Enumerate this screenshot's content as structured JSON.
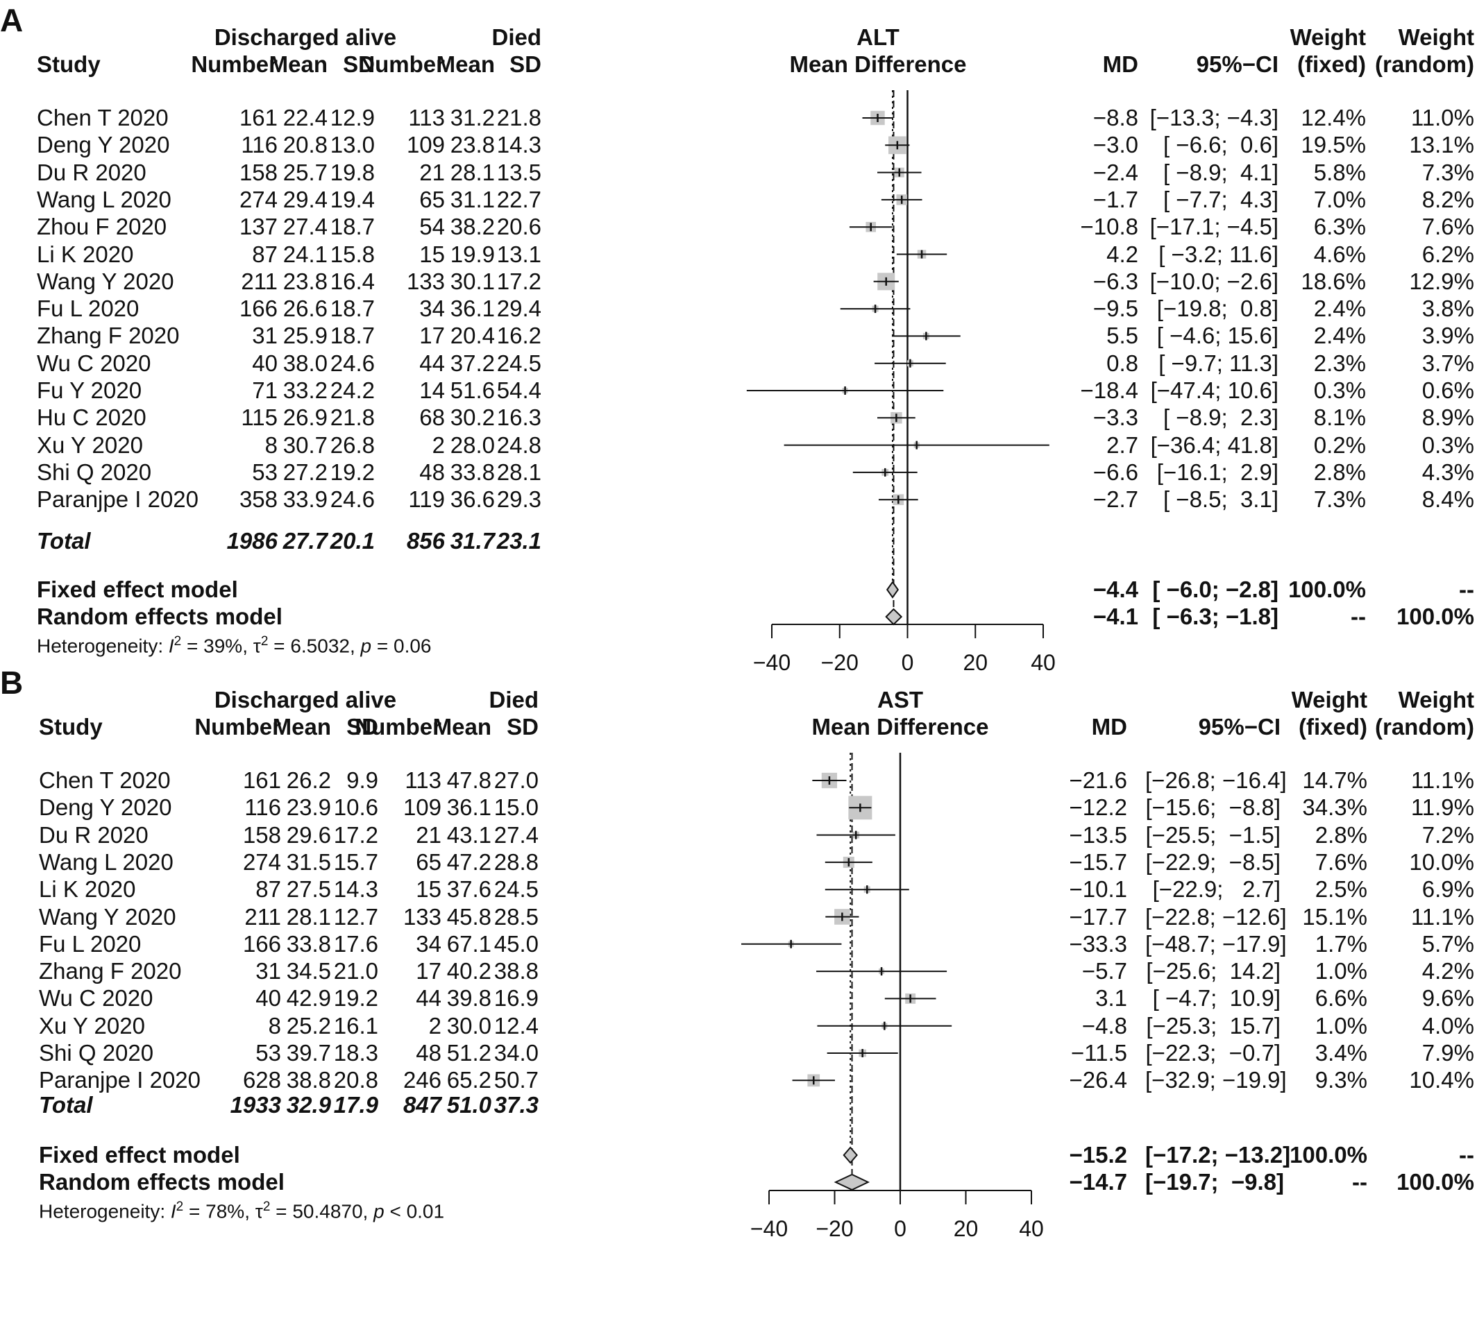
{
  "panels": [
    {
      "label": "A",
      "head": {
        "study": "Study",
        "group1": "Discharged alive",
        "group2": "Died",
        "number": "Number",
        "mean": "Mean",
        "sd": "SD",
        "outcome": "ALT",
        "measure": "Mean Difference",
        "md": "MD",
        "ci": "95%−CI",
        "weight": "Weight",
        "fixed": "(fixed)",
        "random": "(random)"
      },
      "studies": [
        {
          "name": "Chen T 2020",
          "n1": "161",
          "m1": "22.4",
          "sd1": "12.9",
          "n2": "113",
          "m2": "31.2",
          "sd2": "21.8",
          "md": "−8.8",
          "ci": "[−13.3; −4.3]",
          "wf": "12.4%",
          "wr": "11.0%"
        },
        {
          "name": "Deng Y 2020",
          "n1": "116",
          "m1": "20.8",
          "sd1": "13.0",
          "n2": "109",
          "m2": "23.8",
          "sd2": "14.3",
          "md": "−3.0",
          "ci": "[ −6.6;  0.6]",
          "wf": "19.5%",
          "wr": "13.1%"
        },
        {
          "name": "Du R 2020",
          "n1": "158",
          "m1": "25.7",
          "sd1": "19.8",
          "n2": "21",
          "m2": "28.1",
          "sd2": "13.5",
          "md": "−2.4",
          "ci": "[ −8.9;  4.1]",
          "wf": "5.8%",
          "wr": "7.3%"
        },
        {
          "name": "Wang L 2020",
          "n1": "274",
          "m1": "29.4",
          "sd1": "19.4",
          "n2": "65",
          "m2": "31.1",
          "sd2": "22.7",
          "md": "−1.7",
          "ci": "[ −7.7;  4.3]",
          "wf": "7.0%",
          "wr": "8.2%"
        },
        {
          "name": "Zhou F 2020",
          "n1": "137",
          "m1": "27.4",
          "sd1": "18.7",
          "n2": "54",
          "m2": "38.2",
          "sd2": "20.6",
          "md": "−10.8",
          "ci": "[−17.1; −4.5]",
          "wf": "6.3%",
          "wr": "7.6%"
        },
        {
          "name": "Li K 2020",
          "n1": "87",
          "m1": "24.1",
          "sd1": "15.8",
          "n2": "15",
          "m2": "19.9",
          "sd2": "13.1",
          "md": "4.2",
          "ci": "[ −3.2; 11.6]",
          "wf": "4.6%",
          "wr": "6.2%"
        },
        {
          "name": "Wang Y 2020",
          "n1": "211",
          "m1": "23.8",
          "sd1": "16.4",
          "n2": "133",
          "m2": "30.1",
          "sd2": "17.2",
          "md": "−6.3",
          "ci": "[−10.0; −2.6]",
          "wf": "18.6%",
          "wr": "12.9%"
        },
        {
          "name": "Fu L 2020",
          "n1": "166",
          "m1": "26.6",
          "sd1": "18.7",
          "n2": "34",
          "m2": "36.1",
          "sd2": "29.4",
          "md": "−9.5",
          "ci": "[−19.8;  0.8]",
          "wf": "2.4%",
          "wr": "3.8%"
        },
        {
          "name": "Zhang F 2020",
          "n1": "31",
          "m1": "25.9",
          "sd1": "18.7",
          "n2": "17",
          "m2": "20.4",
          "sd2": "16.2",
          "md": "5.5",
          "ci": "[ −4.6; 15.6]",
          "wf": "2.4%",
          "wr": "3.9%"
        },
        {
          "name": "Wu C 2020",
          "n1": "40",
          "m1": "38.0",
          "sd1": "24.6",
          "n2": "44",
          "m2": "37.2",
          "sd2": "24.5",
          "md": "0.8",
          "ci": "[ −9.7; 11.3]",
          "wf": "2.3%",
          "wr": "3.7%"
        },
        {
          "name": "Fu Y 2020",
          "n1": "71",
          "m1": "33.2",
          "sd1": "24.2",
          "n2": "14",
          "m2": "51.6",
          "sd2": "54.4",
          "md": "−18.4",
          "ci": "[−47.4; 10.6]",
          "wf": "0.3%",
          "wr": "0.6%"
        },
        {
          "name": "Hu C 2020",
          "n1": "115",
          "m1": "26.9",
          "sd1": "21.8",
          "n2": "68",
          "m2": "30.2",
          "sd2": "16.3",
          "md": "−3.3",
          "ci": "[ −8.9;  2.3]",
          "wf": "8.1%",
          "wr": "8.9%"
        },
        {
          "name": "Xu Y 2020",
          "n1": "8",
          "m1": "30.7",
          "sd1": "26.8",
          "n2": "2",
          "m2": "28.0",
          "sd2": "24.8",
          "md": "2.7",
          "ci": "[−36.4; 41.8]",
          "wf": "0.2%",
          "wr": "0.3%"
        },
        {
          "name": "Shi Q 2020",
          "n1": "53",
          "m1": "27.2",
          "sd1": "19.2",
          "n2": "48",
          "m2": "33.8",
          "sd2": "28.1",
          "md": "−6.6",
          "ci": "[−16.1;  2.9]",
          "wf": "2.8%",
          "wr": "4.3%"
        },
        {
          "name": "Paranjpe I 2020",
          "n1": "358",
          "m1": "33.9",
          "sd1": "24.6",
          "n2": "119",
          "m2": "36.6",
          "sd2": "29.3",
          "md": "−2.7",
          "ci": "[ −8.5;  3.1]",
          "wf": "7.3%",
          "wr": "8.4%"
        }
      ],
      "total": {
        "label": "Total",
        "n1": "1986",
        "m1": "27.7",
        "sd1": "20.1",
        "n2": "856",
        "m2": "31.7",
        "sd2": "23.1"
      },
      "fixed": {
        "label": "Fixed effect model",
        "md": "−4.4",
        "ci": "[ −6.0; −2.8]",
        "wf": "100.0%",
        "wr": "--"
      },
      "random": {
        "label": "Random effects model",
        "md": "−4.1",
        "ci": "[ −6.3; −1.8]",
        "wf": "--",
        "wr": "100.0%"
      },
      "heterogeneity": {
        "prefix": "Heterogeneity: ",
        "i2": "I",
        "i2_rest": " = 39%, ",
        "tau": "τ",
        "tau_rest": " = 6.5032, ",
        "p": "p",
        "p_rest": " = 0.06"
      }
    },
    {
      "label": "B",
      "head": {
        "study": "Study",
        "group1": "Discharged alive",
        "group2": "Died",
        "number": "Number",
        "mean": "Mean",
        "sd": "SD",
        "outcome": "AST",
        "measure": "Mean Difference",
        "md": "MD",
        "ci": "95%−CI",
        "weight": "Weight",
        "fixed": "(fixed)",
        "random": "(random)"
      },
      "studies": [
        {
          "name": "Chen T 2020",
          "n1": "161",
          "m1": "26.2",
          "sd1": "9.9",
          "n2": "113",
          "m2": "47.8",
          "sd2": "27.0",
          "md": "−21.6",
          "ci": "[−26.8; −16.4]",
          "wf": "14.7%",
          "wr": "11.1%"
        },
        {
          "name": "Deng Y 2020",
          "n1": "116",
          "m1": "23.9",
          "sd1": "10.6",
          "n2": "109",
          "m2": "36.1",
          "sd2": "15.0",
          "md": "−12.2",
          "ci": "[−15.6;  −8.8]",
          "wf": "34.3%",
          "wr": "11.9%"
        },
        {
          "name": "Du R 2020",
          "n1": "158",
          "m1": "29.6",
          "sd1": "17.2",
          "n2": "21",
          "m2": "43.1",
          "sd2": "27.4",
          "md": "−13.5",
          "ci": "[−25.5;  −1.5]",
          "wf": "2.8%",
          "wr": "7.2%"
        },
        {
          "name": "Wang L 2020",
          "n1": "274",
          "m1": "31.5",
          "sd1": "15.7",
          "n2": "65",
          "m2": "47.2",
          "sd2": "28.8",
          "md": "−15.7",
          "ci": "[−22.9;  −8.5]",
          "wf": "7.6%",
          "wr": "10.0%"
        },
        {
          "name": "Li K 2020",
          "n1": "87",
          "m1": "27.5",
          "sd1": "14.3",
          "n2": "15",
          "m2": "37.6",
          "sd2": "24.5",
          "md": "−10.1",
          "ci": "[−22.9;   2.7]",
          "wf": "2.5%",
          "wr": "6.9%"
        },
        {
          "name": "Wang Y 2020",
          "n1": "211",
          "m1": "28.1",
          "sd1": "12.7",
          "n2": "133",
          "m2": "45.8",
          "sd2": "28.5",
          "md": "−17.7",
          "ci": "[−22.8; −12.6]",
          "wf": "15.1%",
          "wr": "11.1%"
        },
        {
          "name": "Fu L 2020",
          "n1": "166",
          "m1": "33.8",
          "sd1": "17.6",
          "n2": "34",
          "m2": "67.1",
          "sd2": "45.0",
          "md": "−33.3",
          "ci": "[−48.7; −17.9]",
          "wf": "1.7%",
          "wr": "5.7%"
        },
        {
          "name": "Zhang F 2020",
          "n1": "31",
          "m1": "34.5",
          "sd1": "21.0",
          "n2": "17",
          "m2": "40.2",
          "sd2": "38.8",
          "md": "−5.7",
          "ci": "[−25.6;  14.2]",
          "wf": "1.0%",
          "wr": "4.2%"
        },
        {
          "name": "Wu C 2020",
          "n1": "40",
          "m1": "42.9",
          "sd1": "19.2",
          "n2": "44",
          "m2": "39.8",
          "sd2": "16.9",
          "md": "3.1",
          "ci": "[ −4.7;  10.9]",
          "wf": "6.6%",
          "wr": "9.6%"
        },
        {
          "name": "Xu Y 2020",
          "n1": "8",
          "m1": "25.2",
          "sd1": "16.1",
          "n2": "2",
          "m2": "30.0",
          "sd2": "12.4",
          "md": "−4.8",
          "ci": "[−25.3;  15.7]",
          "wf": "1.0%",
          "wr": "4.0%"
        },
        {
          "name": "Shi Q 2020",
          "n1": "53",
          "m1": "39.7",
          "sd1": "18.3",
          "n2": "48",
          "m2": "51.2",
          "sd2": "34.0",
          "md": "−11.5",
          "ci": "[−22.3;  −0.7]",
          "wf": "3.4%",
          "wr": "7.9%"
        },
        {
          "name": "Paranjpe I 2020",
          "n1": "628",
          "m1": "38.8",
          "sd1": "20.8",
          "n2": "246",
          "m2": "65.2",
          "sd2": "50.7",
          "md": "−26.4",
          "ci": "[−32.9; −19.9]",
          "wf": "9.3%",
          "wr": "10.4%"
        }
      ],
      "total": {
        "label": "Total",
        "n1": "1933",
        "m1": "32.9",
        "sd1": "17.9",
        "n2": "847",
        "m2": "51.0",
        "sd2": "37.3"
      },
      "fixed": {
        "label": "Fixed effect model",
        "md": "−15.2",
        "ci": "[−17.2; −13.2]",
        "wf": "100.0%",
        "wr": "--"
      },
      "random": {
        "label": "Random effects model",
        "md": "−14.7",
        "ci": "[−19.7;  −9.8]",
        "wf": "--",
        "wr": "100.0%"
      },
      "heterogeneity": {
        "prefix": "Heterogeneity: ",
        "i2": "I",
        "i2_rest": " = 78%, ",
        "tau": "τ",
        "tau_rest": " = 50.4870, ",
        "p": "p",
        "p_rest": " < 0.01"
      }
    }
  ],
  "chart_data": [
    {
      "type": "forest",
      "title": "ALT",
      "xlabel": "Mean Difference",
      "xlim": [
        -40,
        40
      ],
      "xticks": [
        "−40",
        "−20",
        "0",
        "20",
        "40"
      ],
      "xtick_values": [
        -40,
        -20,
        0,
        20,
        40
      ],
      "marker_color": "#c8c8c8",
      "series": [
        {
          "name": "Chen T 2020",
          "md": -8.8,
          "lo": -13.3,
          "hi": -4.3,
          "w_fixed": 12.4
        },
        {
          "name": "Deng Y 2020",
          "md": -3.0,
          "lo": -6.6,
          "hi": 0.6,
          "w_fixed": 19.5
        },
        {
          "name": "Du R 2020",
          "md": -2.4,
          "lo": -8.9,
          "hi": 4.1,
          "w_fixed": 5.8
        },
        {
          "name": "Wang L 2020",
          "md": -1.7,
          "lo": -7.7,
          "hi": 4.3,
          "w_fixed": 7.0
        },
        {
          "name": "Zhou F 2020",
          "md": -10.8,
          "lo": -17.1,
          "hi": -4.5,
          "w_fixed": 6.3
        },
        {
          "name": "Li K 2020",
          "md": 4.2,
          "lo": -3.2,
          "hi": 11.6,
          "w_fixed": 4.6
        },
        {
          "name": "Wang Y 2020",
          "md": -6.3,
          "lo": -10.0,
          "hi": -2.6,
          "w_fixed": 18.6
        },
        {
          "name": "Fu L 2020",
          "md": -9.5,
          "lo": -19.8,
          "hi": 0.8,
          "w_fixed": 2.4
        },
        {
          "name": "Zhang F 2020",
          "md": 5.5,
          "lo": -4.6,
          "hi": 15.6,
          "w_fixed": 2.4
        },
        {
          "name": "Wu C 2020",
          "md": 0.8,
          "lo": -9.7,
          "hi": 11.3,
          "w_fixed": 2.3
        },
        {
          "name": "Fu Y 2020",
          "md": -18.4,
          "lo": -47.4,
          "hi": 10.6,
          "w_fixed": 0.3
        },
        {
          "name": "Hu C 2020",
          "md": -3.3,
          "lo": -8.9,
          "hi": 2.3,
          "w_fixed": 8.1
        },
        {
          "name": "Xu Y 2020",
          "md": 2.7,
          "lo": -36.4,
          "hi": 41.8,
          "w_fixed": 0.2
        },
        {
          "name": "Shi Q 2020",
          "md": -6.6,
          "lo": -16.1,
          "hi": 2.9,
          "w_fixed": 2.8
        },
        {
          "name": "Paranjpe I 2020",
          "md": -2.7,
          "lo": -8.5,
          "hi": 3.1,
          "w_fixed": 7.3
        }
      ],
      "fixed_effect": {
        "md": -4.4,
        "lo": -6.0,
        "hi": -2.8
      },
      "random_effects": {
        "md": -4.1,
        "lo": -6.3,
        "hi": -1.8
      }
    },
    {
      "type": "forest",
      "title": "AST",
      "xlabel": "Mean Difference",
      "xlim": [
        -40,
        40
      ],
      "xticks": [
        "−40",
        "−20",
        "0",
        "20",
        "40"
      ],
      "xtick_values": [
        -40,
        -20,
        0,
        20,
        40
      ],
      "marker_color": "#c8c8c8",
      "series": [
        {
          "name": "Chen T 2020",
          "md": -21.6,
          "lo": -26.8,
          "hi": -16.4,
          "w_fixed": 14.7
        },
        {
          "name": "Deng Y 2020",
          "md": -12.2,
          "lo": -15.6,
          "hi": -8.8,
          "w_fixed": 34.3
        },
        {
          "name": "Du R 2020",
          "md": -13.5,
          "lo": -25.5,
          "hi": -1.5,
          "w_fixed": 2.8
        },
        {
          "name": "Wang L 2020",
          "md": -15.7,
          "lo": -22.9,
          "hi": -8.5,
          "w_fixed": 7.6
        },
        {
          "name": "Li K 2020",
          "md": -10.1,
          "lo": -22.9,
          "hi": 2.7,
          "w_fixed": 2.5
        },
        {
          "name": "Wang Y 2020",
          "md": -17.7,
          "lo": -22.8,
          "hi": -12.6,
          "w_fixed": 15.1
        },
        {
          "name": "Fu L 2020",
          "md": -33.3,
          "lo": -48.7,
          "hi": -17.9,
          "w_fixed": 1.7
        },
        {
          "name": "Zhang F 2020",
          "md": -5.7,
          "lo": -25.6,
          "hi": 14.2,
          "w_fixed": 1.0
        },
        {
          "name": "Wu C 2020",
          "md": 3.1,
          "lo": -4.7,
          "hi": 10.9,
          "w_fixed": 6.6
        },
        {
          "name": "Xu Y 2020",
          "md": -4.8,
          "lo": -25.3,
          "hi": 15.7,
          "w_fixed": 1.0
        },
        {
          "name": "Shi Q 2020",
          "md": -11.5,
          "lo": -22.3,
          "hi": -0.7,
          "w_fixed": 3.4
        },
        {
          "name": "Paranjpe I 2020",
          "md": -26.4,
          "lo": -32.9,
          "hi": -19.9,
          "w_fixed": 9.3
        }
      ],
      "fixed_effect": {
        "md": -15.2,
        "lo": -17.2,
        "hi": -13.2
      },
      "random_effects": {
        "md": -14.7,
        "lo": -19.7,
        "hi": -9.8
      }
    }
  ]
}
